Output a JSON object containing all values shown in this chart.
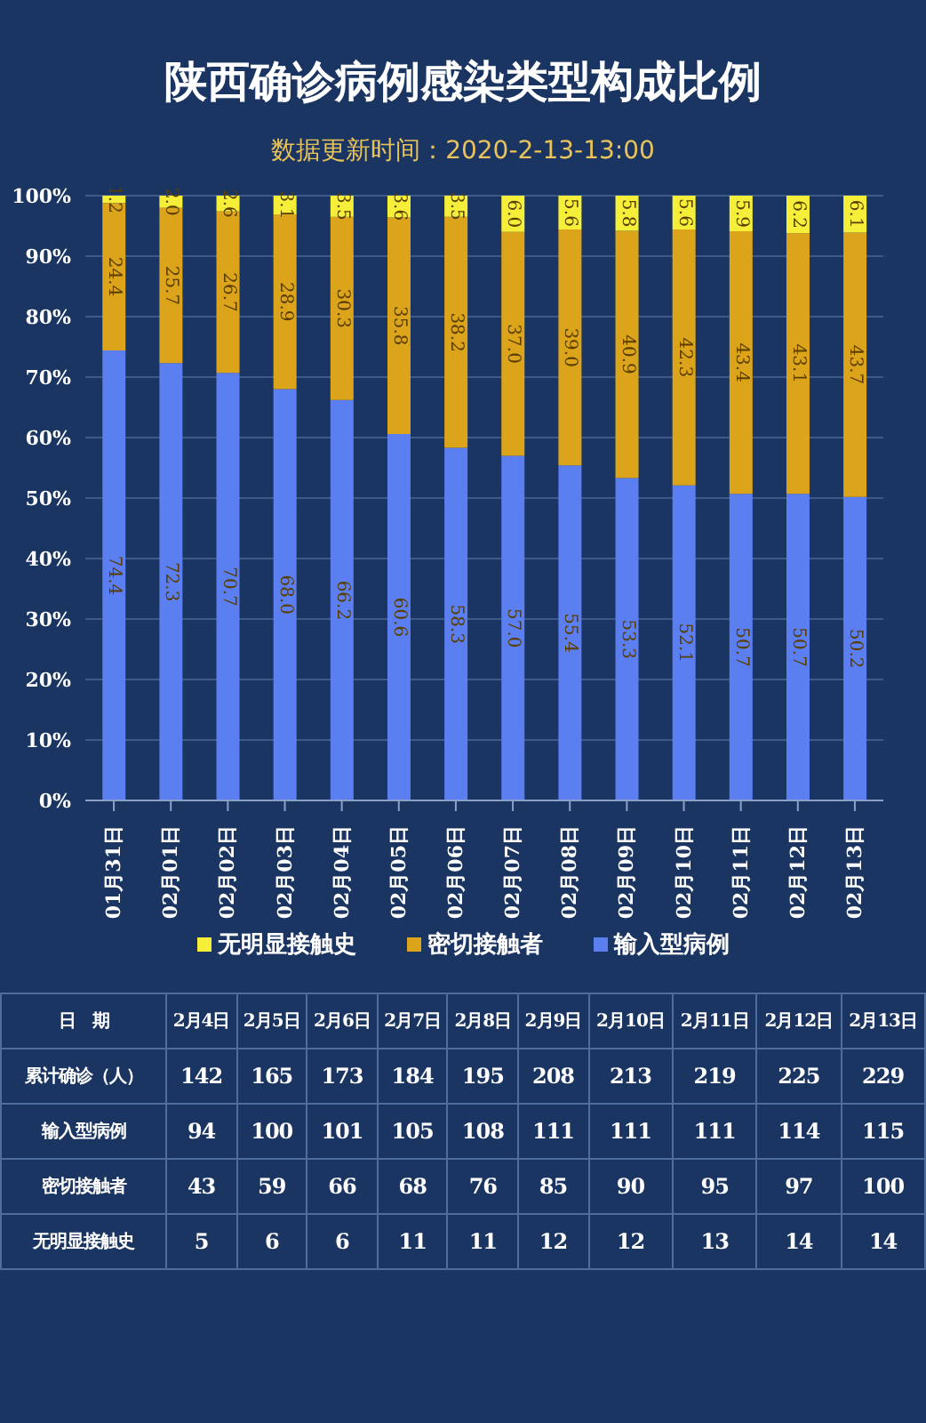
{
  "chart_data": [
    {
      "type": "bar",
      "title": "陕西确诊病例感染类型构成比例",
      "subtitle": "数据更新时间：2020-2-13-13:00",
      "stacked": true,
      "categories": [
        "01月31日",
        "02月01日",
        "02月02日",
        "02月03日",
        "02月04日",
        "02月05日",
        "02月06日",
        "02月07日",
        "02月08日",
        "02月09日",
        "02月10日",
        "02月11日",
        "02月12日",
        "02月13日"
      ],
      "series": [
        {
          "name": "输入型病例",
          "color": "#5b7ff0",
          "values": [
            74.4,
            72.3,
            70.7,
            68.0,
            66.2,
            60.6,
            58.3,
            57.0,
            55.4,
            53.3,
            52.1,
            50.7,
            50.7,
            50.2
          ],
          "value_labels": [
            "74.4",
            "72.3",
            "70.7",
            "68.0",
            "66.2",
            "60.6",
            "58.3",
            "57.0",
            "55.4",
            "53.3",
            "52.1",
            "50.7",
            "50.7",
            "50.2"
          ]
        },
        {
          "name": "密切接触者",
          "color": "#dba41a",
          "values": [
            24.4,
            25.7,
            26.7,
            28.9,
            30.3,
            35.8,
            38.2,
            37.0,
            39.0,
            40.9,
            42.3,
            43.4,
            43.1,
            43.7
          ],
          "value_labels": [
            "24.4",
            "25.7",
            "26.7",
            "28.9",
            "30.3",
            "35.8",
            "38.2",
            "37.0",
            "39.0",
            "40.9",
            "42.3",
            "43.4",
            "43.1",
            "43.7"
          ]
        },
        {
          "name": "无明显接触史",
          "color": "#f5ef3a",
          "values": [
            1.2,
            2.0,
            2.6,
            3.1,
            3.5,
            3.6,
            3.5,
            6.0,
            5.6,
            5.8,
            5.6,
            5.9,
            6.2,
            6.1
          ],
          "value_labels": [
            "1.2",
            "2.0",
            "2.6",
            "3.1",
            "3.5",
            "3.6",
            "3.5",
            "6.0",
            "5.6",
            "5.8",
            "5.6",
            "5.9",
            "6.2",
            "6.1"
          ]
        }
      ],
      "ylim": [
        0,
        100
      ],
      "yticks": [
        {
          "value": 0,
          "label": "0%"
        },
        {
          "value": 10,
          "label": "10%"
        },
        {
          "value": 20,
          "label": "20%"
        },
        {
          "value": 30,
          "label": "30%"
        },
        {
          "value": 40,
          "label": "40%"
        },
        {
          "value": 50,
          "label": "50%"
        },
        {
          "value": 60,
          "label": "60%"
        },
        {
          "value": 70,
          "label": "70%"
        },
        {
          "value": 80,
          "label": "80%"
        },
        {
          "value": 90,
          "label": "90%"
        },
        {
          "value": 100,
          "label": "100%"
        }
      ],
      "grid": "y",
      "legend": "bottom"
    },
    {
      "type": "other",
      "data_labels": true,
      "xlabel": "日　期",
      "categories": [
        "2月4日",
        "2月5日",
        "2月6日",
        "2月7日",
        "2月8日",
        "2月9日",
        "2月10日",
        "2月11日",
        "2月12日",
        "2月13日"
      ],
      "series": [
        {
          "name": "累计确诊（人）",
          "values": [
            142,
            165,
            173,
            184,
            195,
            208,
            213,
            219,
            225,
            229
          ]
        },
        {
          "name": "输入型病例",
          "values": [
            94,
            100,
            101,
            105,
            108,
            111,
            111,
            111,
            114,
            115
          ]
        },
        {
          "name": "密切接触者",
          "values": [
            43,
            59,
            66,
            68,
            76,
            85,
            90,
            95,
            97,
            100
          ]
        },
        {
          "name": "无明显接触史",
          "values": [
            5,
            6,
            6,
            11,
            11,
            12,
            12,
            13,
            14,
            14
          ]
        }
      ]
    }
  ]
}
